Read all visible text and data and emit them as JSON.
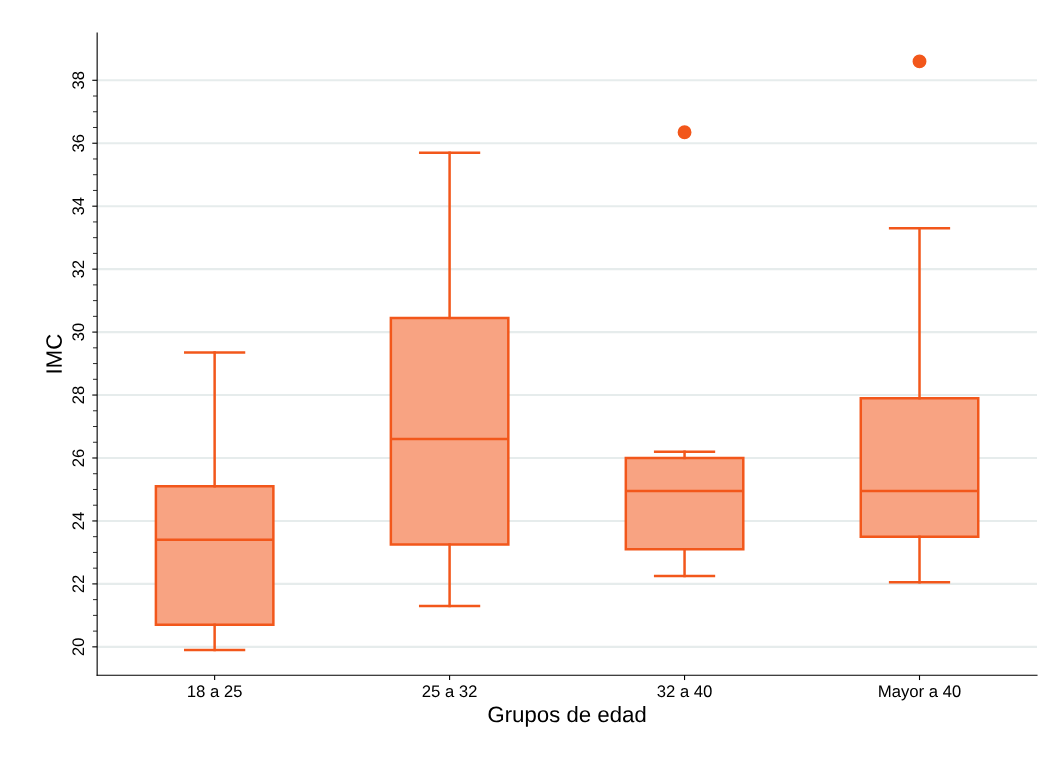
{
  "chart_data": {
    "type": "box",
    "xlabel": "Grupos de edad",
    "ylabel": "IMC",
    "categories": [
      "18 a 25",
      "25 a 32",
      "32 a 40",
      "Mayor a 40"
    ],
    "boxes": [
      {
        "low": 19.9,
        "q1": 20.7,
        "median": 23.4,
        "q3": 25.1,
        "high": 29.35
      },
      {
        "low": 21.3,
        "q1": 23.25,
        "median": 26.6,
        "q3": 30.45,
        "high": 35.7
      },
      {
        "low": 22.25,
        "q1": 23.1,
        "median": 24.95,
        "q3": 26.0,
        "high": 26.2,
        "outliers": [
          36.35
        ]
      },
      {
        "low": 22.05,
        "q1": 23.5,
        "median": 24.95,
        "q3": 27.9,
        "high": 33.3,
        "outliers": [
          38.6
        ]
      }
    ],
    "color": "#f2571b",
    "ylim": [
      19.1,
      39.5
    ],
    "yticks": [
      20,
      22,
      24,
      26,
      28,
      30,
      32,
      34,
      36,
      38
    ],
    "grid": "y"
  }
}
